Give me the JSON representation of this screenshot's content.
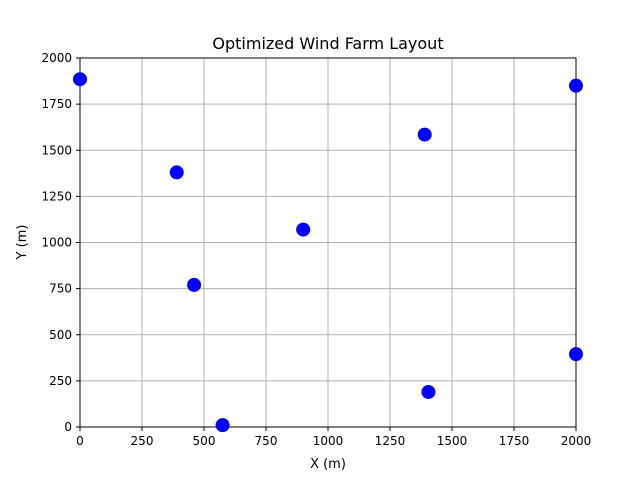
{
  "chart_data": {
    "type": "scatter",
    "title": "Optimized Wind Farm Layout",
    "xlabel": "X (m)",
    "ylabel": "Y (m)",
    "xlim": [
      0,
      2000
    ],
    "ylim": [
      0,
      2000
    ],
    "xticks": [
      "0",
      "250",
      "500",
      "750",
      "1000",
      "1250",
      "1500",
      "1750",
      "2000"
    ],
    "yticks": [
      "0",
      "250",
      "500",
      "750",
      "1000",
      "1250",
      "1500",
      "1750",
      "2000"
    ],
    "grid": true,
    "color": "#0000ff",
    "points": [
      {
        "x": 0,
        "y": 1885
      },
      {
        "x": 390,
        "y": 1380
      },
      {
        "x": 460,
        "y": 770
      },
      {
        "x": 575,
        "y": 10
      },
      {
        "x": 900,
        "y": 1070
      },
      {
        "x": 1390,
        "y": 1585
      },
      {
        "x": 1405,
        "y": 190
      },
      {
        "x": 2000,
        "y": 1850
      },
      {
        "x": 2000,
        "y": 395
      }
    ]
  }
}
